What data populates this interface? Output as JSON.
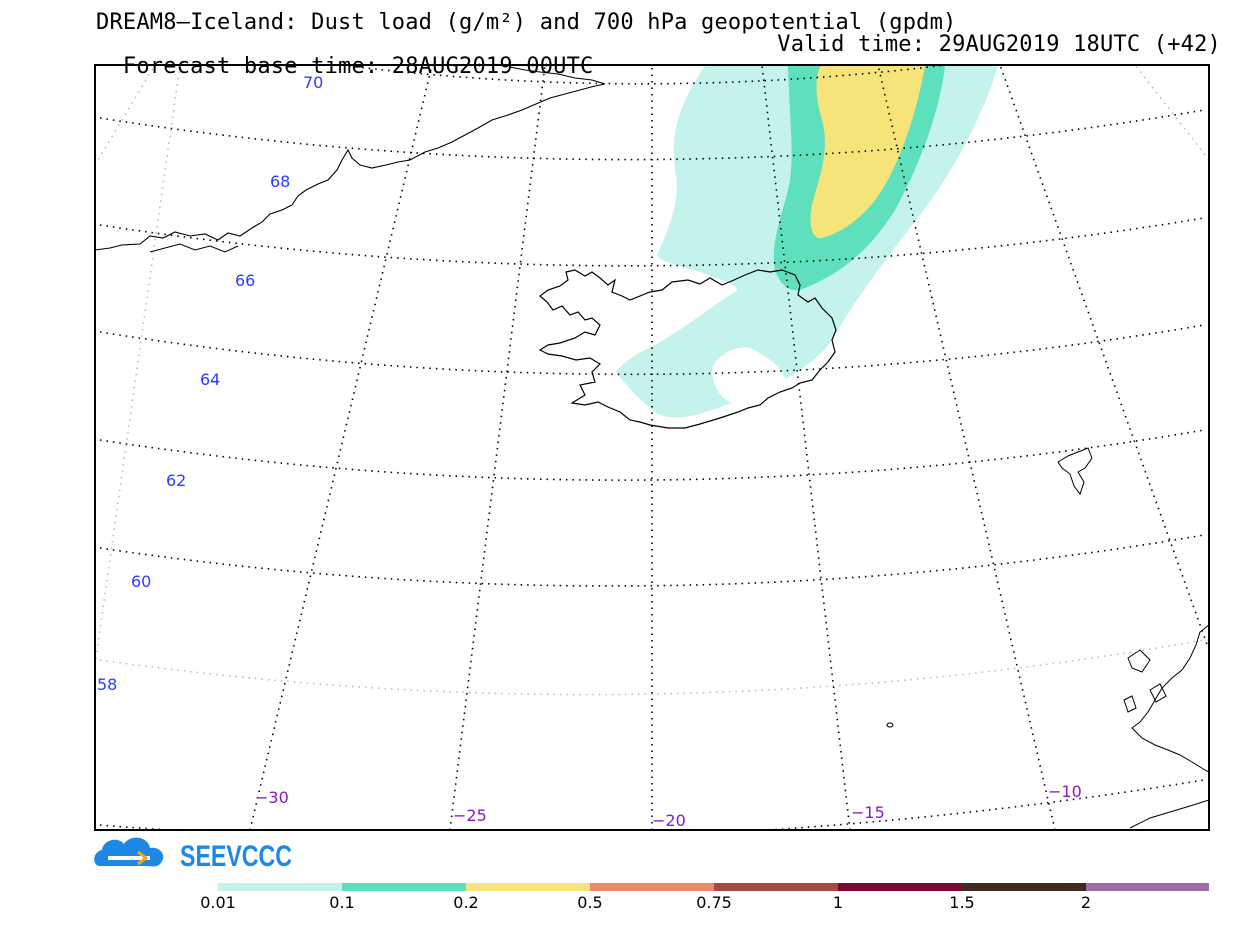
{
  "title": {
    "line1": "DREAM8—Iceland: Dust load (g/m²) and 700 hPa geopotential (gpdm)",
    "forecast_base": "Forecast base time: 28AUG2019 00UTC",
    "valid": "Valid time: 29AUG2019 18UTC (+42)"
  },
  "latitude_labels": [
    "70",
    "68",
    "66",
    "64",
    "62",
    "60",
    "58"
  ],
  "longitude_labels": [
    "−30",
    "−25",
    "−20",
    "−15",
    "−10"
  ],
  "branding": {
    "logo_text": "SEEVCCC",
    "logo_color": "#1e88e5"
  },
  "colors": {
    "latitude_label": "#2a3cff",
    "longitude_label": "#8a17c9",
    "dust_0_01": "#c4f2ec",
    "dust_0_1": "#5fe0bc",
    "dust_0_2": "#f6e37a"
  },
  "legend": {
    "bins": [
      {
        "label": "0.01",
        "color": "#c4f2ec"
      },
      {
        "label": "0.1",
        "color": "#5fe0bc"
      },
      {
        "label": "0.2",
        "color": "#f6e37a"
      },
      {
        "label": "0.5",
        "color": "#e98a6a"
      },
      {
        "label": "0.75",
        "color": "#a84a44"
      },
      {
        "label": "1",
        "color": "#7a0a2e"
      },
      {
        "label": "1.5",
        "color": "#3f2a1e"
      },
      {
        "label": "2",
        "color": "#9a6fa8"
      }
    ]
  }
}
